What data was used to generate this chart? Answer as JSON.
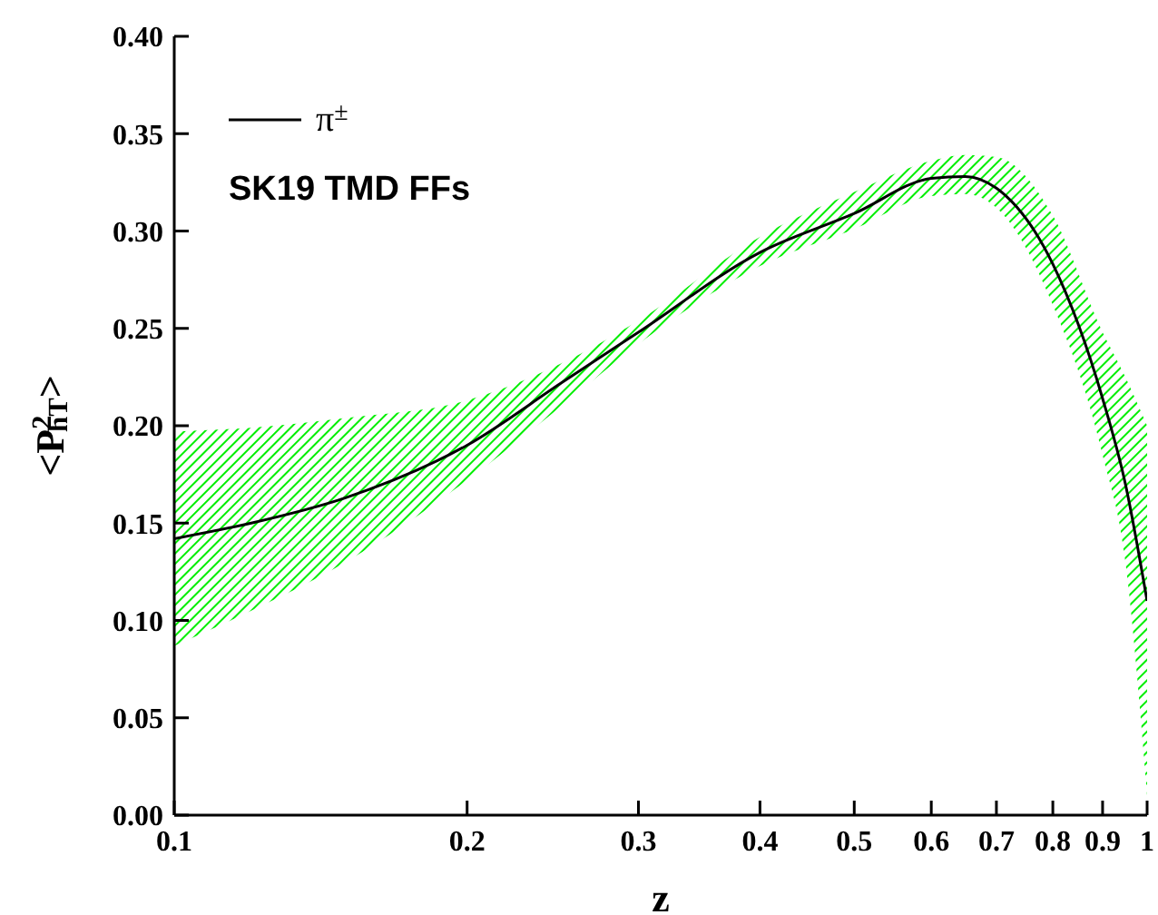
{
  "chart_data": {
    "type": "line",
    "xlabel": "z",
    "ylabel": "<P$^{2}$$_{hT}$>",
    "annotations": [
      "SK19 TMD FFs"
    ],
    "legend": "top left",
    "log": "x",
    "grid": false,
    "marker": "none",
    "line_style": "solid",
    "xlim": [
      0.1,
      1
    ],
    "xticks": [
      0.1,
      0.2,
      0.3,
      0.4,
      0.5,
      0.6,
      0.7,
      0.8,
      0.9,
      1
    ],
    "ylim": [
      0,
      0.4
    ],
    "yticks": [
      {
        "value": 0,
        "label": "0.00"
      },
      {
        "value": 0.05,
        "label": "0.05"
      },
      {
        "value": 0.1,
        "label": "0.10"
      },
      {
        "value": 0.15,
        "label": "0.15"
      },
      {
        "value": 0.2,
        "label": "0.20"
      },
      {
        "value": 0.25,
        "label": "0.25"
      },
      {
        "value": 0.3,
        "label": "0.30"
      },
      {
        "value": 0.35,
        "label": "0.35"
      },
      {
        "value": 0.4,
        "label": "0.40"
      }
    ],
    "x": [
      0.1,
      0.12,
      0.15,
      0.2,
      0.25,
      0.3,
      0.4,
      0.5,
      0.6,
      0.65,
      0.7,
      0.8,
      0.9,
      0.95,
      1
    ],
    "series": [
      {
        "name": "π$^{±}$",
        "color": "#000000",
        "values": [
          0.142,
          0.15,
          0.163,
          0.19,
          0.222,
          0.248,
          0.289,
          0.309,
          0.327,
          0.328,
          0.322,
          0.283,
          0.214,
          0.17,
          0.11
        ],
        "lower": [
          0.087,
          0.105,
          0.13,
          0.172,
          0.21,
          0.242,
          0.282,
          0.301,
          0.318,
          0.319,
          0.312,
          0.262,
          0.185,
          0.13,
          0.01
        ],
        "upper": [
          0.197,
          0.199,
          0.204,
          0.213,
          0.232,
          0.254,
          0.297,
          0.32,
          0.336,
          0.339,
          0.338,
          0.308,
          0.248,
          0.225,
          0.2
        ]
      }
    ]
  }
}
